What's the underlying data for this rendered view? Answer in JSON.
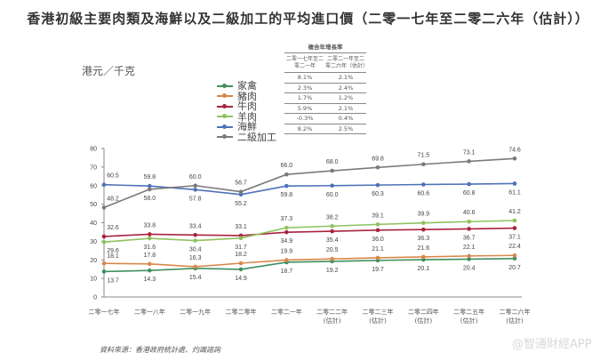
{
  "title": "香港初級主要肉類及海鮮以及二級加工的平均進口價（二零一七年至二零二六年（估計））",
  "unit_label": "港元／千克",
  "cagr_table": {
    "title": "複合年增長率",
    "headers": [
      "二零一七年至二零二一年",
      "二零二一年至二零二六年（估計）"
    ],
    "rows": [
      {
        "series": "家禽",
        "v1": "8.1%",
        "v2": "2.1%"
      },
      {
        "series": "豬肉",
        "v1": "2.3%",
        "v2": "2.4%"
      },
      {
        "series": "牛肉",
        "v1": "1.7%",
        "v2": "1.2%"
      },
      {
        "series": "羊肉",
        "v1": "5.9%",
        "v2": "2.1%"
      },
      {
        "series": "海鮮",
        "v1": "-0.3%",
        "v2": "0.4%"
      },
      {
        "series": "二級加工",
        "v1": "8.2%",
        "v2": "2.5%"
      }
    ]
  },
  "source": "資料來源：香港政府統計處、灼識諮詢",
  "watermark": "@智通財經APP",
  "chart_data": {
    "type": "line",
    "title": "香港初級主要肉類及海鮮以及二級加工的平均進口價（二零一七年至二零二六年（估計））",
    "xlabel": "",
    "ylabel": "港元／千克",
    "ylim": [
      0,
      80
    ],
    "yticks": [
      0,
      10,
      20,
      30,
      40,
      50,
      60,
      70,
      80
    ],
    "grid": false,
    "legend_position": "top-center",
    "categories": [
      "二零一七年",
      "二零一八年",
      "二零一九年",
      "二零二零年",
      "二零二一年",
      "二零二二年\n(估計)",
      "二零二三年\n(估計)",
      "二零二四年\n(估計)",
      "二零二五年\n(估計)",
      "二零二六年\n(估計)"
    ],
    "series": [
      {
        "name": "家禽",
        "color": "#3f8f5f",
        "values": [
          13.7,
          14.3,
          15.4,
          14.9,
          18.7,
          19.2,
          19.7,
          20.1,
          20.4,
          20.7
        ],
        "label_pos": "below"
      },
      {
        "name": "豬肉",
        "color": "#d9874a",
        "values": [
          18.1,
          17.8,
          16.3,
          18.2,
          19.9,
          20.5,
          21.1,
          21.6,
          22.1,
          22.4
        ],
        "label_pos": "above"
      },
      {
        "name": "牛肉",
        "color": "#a8243f",
        "values": [
          32.6,
          33.8,
          33.4,
          33.1,
          34.9,
          35.4,
          36.0,
          36.3,
          36.7,
          37.1
        ],
        "label_pos": "mixed"
      },
      {
        "name": "羊肉",
        "color": "#8fc25e",
        "values": [
          29.6,
          31.6,
          30.4,
          31.7,
          37.3,
          38.2,
          39.1,
          39.9,
          40.6,
          41.2
        ],
        "label_pos": "mixed"
      },
      {
        "name": "海鮮",
        "color": "#4e72b8",
        "values": [
          60.5,
          59.8,
          57.8,
          55.2,
          59.8,
          60.0,
          60.3,
          60.6,
          60.8,
          61.1
        ],
        "label_pos": "mixed"
      },
      {
        "name": "二級加工",
        "color": "#7a7a7a",
        "values": [
          48.2,
          58.0,
          60.0,
          56.7,
          66.0,
          68.0,
          69.8,
          71.5,
          73.1,
          74.6
        ],
        "label_pos": "above"
      }
    ]
  }
}
